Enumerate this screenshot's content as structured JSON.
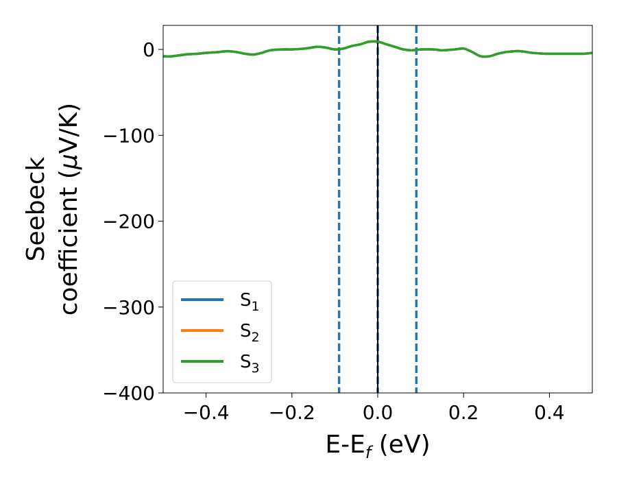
{
  "chart_data": {
    "type": "line",
    "title": "",
    "xlabel": {
      "base": "E-E",
      "sub": "f",
      "rest": " (eV)"
    },
    "ylabel": {
      "line1": "Seebeck",
      "line2_pre": "coefficient  (",
      "mu": "μ",
      "line2_post": "V/K)"
    },
    "xlim": [
      -0.5,
      0.5
    ],
    "ylim": [
      -400,
      28
    ],
    "xticks": [
      -0.4,
      -0.2,
      0.0,
      0.2,
      0.4
    ],
    "xtick_labels": [
      "−0.4",
      "−0.2",
      "0.0",
      "0.2",
      "0.4"
    ],
    "yticks": [
      0,
      -100,
      -200,
      -300,
      -400
    ],
    "ytick_labels": [
      "0",
      "−100",
      "−200",
      "−300",
      "−400"
    ],
    "grid": false,
    "legend_position": "lower-left",
    "x": [
      -0.5,
      -0.48,
      -0.45,
      -0.42,
      -0.4,
      -0.37,
      -0.35,
      -0.33,
      -0.31,
      -0.29,
      -0.27,
      -0.25,
      -0.22,
      -0.2,
      -0.17,
      -0.14,
      -0.12,
      -0.1,
      -0.08,
      -0.06,
      -0.04,
      -0.02,
      0.0,
      0.02,
      0.04,
      0.06,
      0.08,
      0.1,
      0.13,
      0.15,
      0.18,
      0.2,
      0.22,
      0.24,
      0.26,
      0.28,
      0.3,
      0.33,
      0.36,
      0.39,
      0.42,
      0.45,
      0.48,
      0.5
    ],
    "series": [
      {
        "name": "S1",
        "label_base": "S",
        "label_sub": "1",
        "color": "#1f77b4",
        "values": [
          -8,
          -8,
          -6,
          -5,
          -4,
          -3,
          -2,
          -3,
          -5,
          -6,
          -4,
          -1,
          0,
          0,
          1,
          3,
          2,
          0,
          1,
          4,
          6,
          9,
          9,
          6,
          3,
          0,
          -1,
          0,
          0,
          -1,
          0,
          1,
          -3,
          -8,
          -8,
          -5,
          -3,
          -2,
          -4,
          -5,
          -5,
          -5,
          -5,
          -4
        ]
      },
      {
        "name": "S2",
        "label_base": "S",
        "label_sub": "2",
        "color": "#ff7f0e",
        "values": [
          -8,
          -8,
          -6,
          -5,
          -4,
          -3,
          -2,
          -3,
          -5,
          -6,
          -4,
          -1,
          0,
          0,
          1,
          3,
          2,
          0,
          1,
          4,
          6,
          9,
          9,
          6,
          3,
          0,
          -1,
          0,
          0,
          -1,
          0,
          1,
          -3,
          -8,
          -8,
          -5,
          -3,
          -2,
          -4,
          -5,
          -5,
          -5,
          -5,
          -4
        ]
      },
      {
        "name": "S3",
        "label_base": "S",
        "label_sub": "3",
        "color": "#2ca02c",
        "values": [
          -8,
          -8,
          -6,
          -5,
          -4,
          -3,
          -2,
          -3,
          -5,
          -6,
          -4,
          -1,
          0,
          0,
          1,
          3,
          2,
          0,
          1,
          4,
          6,
          9,
          9,
          6,
          3,
          0,
          -1,
          0,
          0,
          -1,
          0,
          1,
          -3,
          -8,
          -8,
          -5,
          -3,
          -2,
          -4,
          -5,
          -5,
          -5,
          -5,
          -4
        ]
      }
    ],
    "vlines": [
      {
        "x": -0.09,
        "style": "dashed",
        "color": "#1f77b4"
      },
      {
        "x": 0.0,
        "style": "dashed",
        "color": "#1f77b4"
      },
      {
        "x": 0.09,
        "style": "dashed",
        "color": "#1f77b4"
      },
      {
        "x": 0.0,
        "style": "solid",
        "color": "#000000"
      }
    ]
  }
}
